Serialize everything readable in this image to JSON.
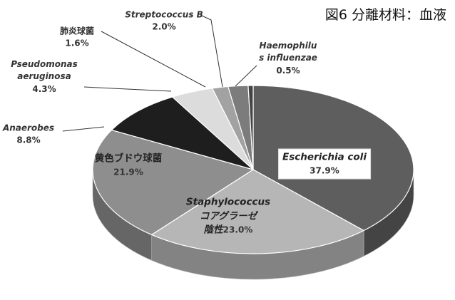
{
  "chart_data": {
    "type": "pie",
    "title": "図6 分離材料：血液",
    "categories": [
      "Escherichia coli",
      "Staphylococcus\nコアグラーゼ\n陰性",
      "黄色ブドウ球菌",
      "Anaerobes",
      "Pseudomonas\naeruginosa",
      "肺炎球菌",
      "Streptococcus B",
      "Haemophilu\ns influenzae"
    ],
    "values": [
      37.9,
      23.0,
      21.9,
      8.8,
      4.3,
      1.6,
      2.0,
      0.5
    ],
    "value_labels": [
      "37.9%",
      "23.0%",
      "21.9%",
      "8.8%",
      "4.3%",
      "1.6%",
      "2.0%",
      "0.5%"
    ],
    "colors": [
      "#5e5e5e",
      "#b6b6b6",
      "#8e8e8e",
      "#1e1e1e",
      "#dcdcdc",
      "#a2a2a2",
      "#7c7c7c",
      "#444444"
    ]
  }
}
